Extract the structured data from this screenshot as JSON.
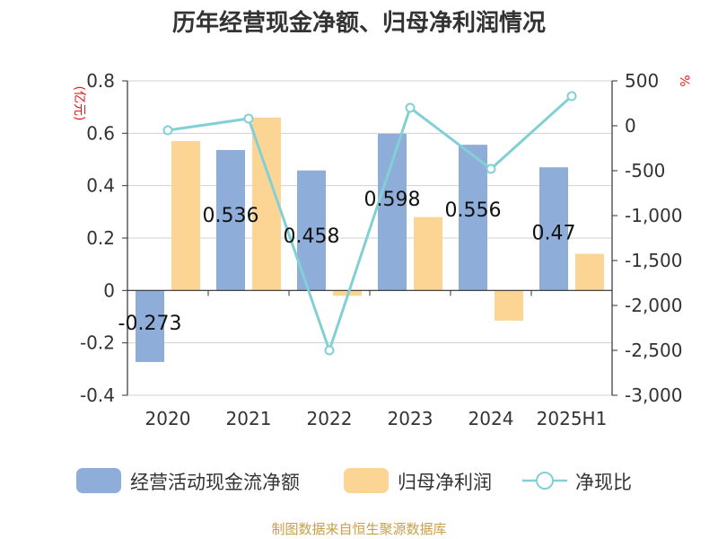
{
  "chart_data": {
    "type": "bar",
    "title": "历年经营现金净额、归母净利润情况",
    "categories": [
      "2020",
      "2021",
      "2022",
      "2023",
      "2024",
      "2025H1"
    ],
    "series": [
      {
        "name": "经营活动现金流净额",
        "type": "bar",
        "axis": "left",
        "color": "#8eadd9",
        "values": [
          -0.273,
          0.536,
          0.458,
          0.598,
          0.556,
          0.47
        ],
        "labels": [
          "-0.273",
          "0.536",
          "0.458",
          "0.598",
          "0.556",
          "0.47"
        ]
      },
      {
        "name": "归母净利润",
        "type": "bar",
        "axis": "left",
        "color": "#fcd595",
        "values": [
          0.57,
          0.66,
          -0.02,
          0.28,
          -0.115,
          0.14
        ]
      },
      {
        "name": "净现比",
        "type": "line",
        "axis": "right",
        "color": "#82d0d6",
        "values": [
          -50,
          80,
          -2500,
          200,
          -480,
          330
        ]
      }
    ],
    "y_left": {
      "label": "(亿元)",
      "label_color": "#e41b1b",
      "ylim": [
        -0.4,
        0.8
      ],
      "ticks": [
        "0.8",
        "0.6",
        "0.4",
        "0.2",
        "0",
        "-0.2",
        "-0.4"
      ]
    },
    "y_right": {
      "label": "%",
      "label_color": "#e41b1b",
      "ylim": [
        -3000,
        500
      ],
      "ticks": [
        "500",
        "0",
        "-500",
        "-1,000",
        "-1,500",
        "-2,000",
        "-2,500",
        "-3,000"
      ]
    },
    "grid": true,
    "legend_position": "bottom",
    "source": "制图数据来自恒生聚源数据库",
    "source_color": "#c8a04a"
  }
}
